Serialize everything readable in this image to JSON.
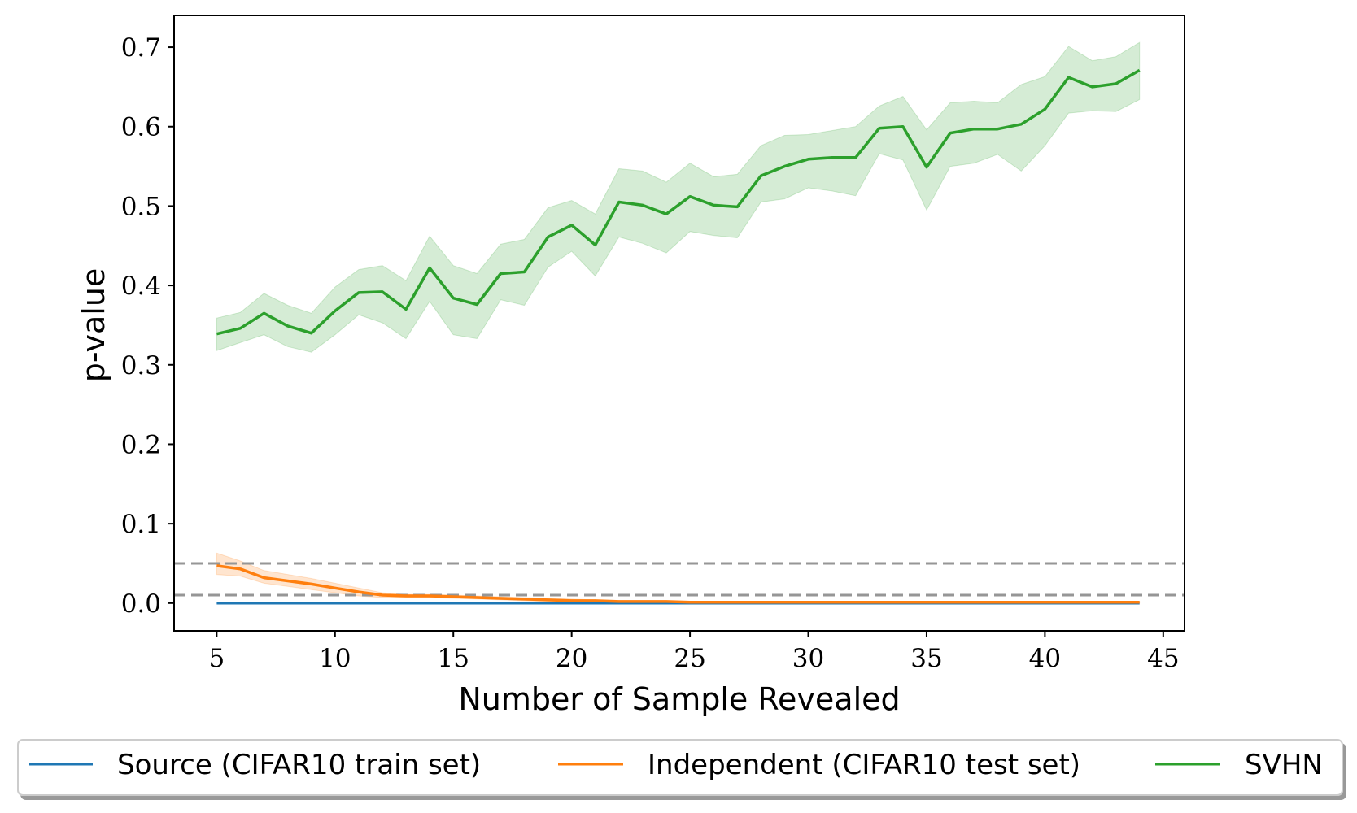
{
  "chart_data": {
    "type": "line",
    "title": "",
    "xlabel": "Number of Sample Revealed",
    "ylabel": "p-value",
    "xlim": [
      3.2,
      45.9
    ],
    "ylim": [
      -0.035,
      0.74
    ],
    "xticks": [
      5,
      10,
      15,
      20,
      25,
      30,
      35,
      40,
      45
    ],
    "xtick_labels": [
      "5",
      "10",
      "15",
      "20",
      "25",
      "30",
      "35",
      "40",
      "45"
    ],
    "yticks": [
      0.0,
      0.1,
      0.2,
      0.3,
      0.4,
      0.5,
      0.6,
      0.7
    ],
    "ytick_labels": [
      "0.0",
      "0.1",
      "0.2",
      "0.3",
      "0.4",
      "0.5",
      "0.6",
      "0.7"
    ],
    "grid": false,
    "legend_position": "bottom",
    "x": [
      5,
      6,
      7,
      8,
      9,
      10,
      11,
      12,
      13,
      14,
      15,
      16,
      17,
      18,
      19,
      20,
      21,
      22,
      23,
      24,
      25,
      26,
      27,
      28,
      29,
      30,
      31,
      32,
      33,
      34,
      35,
      36,
      37,
      38,
      39,
      40,
      41,
      42,
      43,
      44
    ],
    "reference_lines": [
      {
        "y": 0.05,
        "style": "dashed",
        "color": "#969696"
      },
      {
        "y": 0.01,
        "style": "dashed",
        "color": "#969696"
      }
    ],
    "series": [
      {
        "name": "Source (CIFAR10 train set)",
        "color": "#1f77b4",
        "values": [
          0,
          0,
          0,
          0,
          0,
          0,
          0,
          0,
          0,
          0,
          0,
          0,
          0,
          0,
          0,
          0,
          0,
          0,
          0,
          0,
          0,
          0,
          0,
          0,
          0,
          0,
          0,
          0,
          0,
          0,
          0,
          0,
          0,
          0,
          0,
          0,
          0,
          0,
          0,
          0
        ]
      },
      {
        "name": "Independent (CIFAR10 test set)",
        "color": "#ff7f0e",
        "values": [
          0.047,
          0.043,
          0.032,
          0.028,
          0.024,
          0.019,
          0.014,
          0.01,
          0.009,
          0.009,
          0.008,
          0.007,
          0.006,
          0.005,
          0.004,
          0.003,
          0.003,
          0.002,
          0.002,
          0.002,
          0.001,
          0.001,
          0.001,
          0.001,
          0.001,
          0.001,
          0.001,
          0.001,
          0.001,
          0.001,
          0.001,
          0.001,
          0.001,
          0.001,
          0.001,
          0.001,
          0.001,
          0.001,
          0.001,
          0.001
        ],
        "lower": [
          0.036,
          0.034,
          0.025,
          0.021,
          0.017,
          0.013,
          0.009,
          0.007,
          0.007,
          0.007,
          0.006,
          0.005,
          0.004,
          0.003,
          0.002,
          0.002,
          0.002,
          0.001,
          0.001,
          0.001,
          0.0,
          0.0,
          0.0,
          0.0,
          0.0,
          0.0,
          0.0,
          0.0,
          0.0,
          0.0,
          0.0,
          0.0,
          0.0,
          0.0,
          0.0,
          0.0,
          0.0,
          0.0,
          0.0,
          0.0
        ],
        "upper": [
          0.063,
          0.053,
          0.041,
          0.036,
          0.031,
          0.025,
          0.019,
          0.013,
          0.011,
          0.011,
          0.01,
          0.009,
          0.008,
          0.007,
          0.006,
          0.005,
          0.004,
          0.003,
          0.003,
          0.003,
          0.002,
          0.002,
          0.002,
          0.002,
          0.002,
          0.002,
          0.002,
          0.002,
          0.002,
          0.002,
          0.002,
          0.002,
          0.002,
          0.002,
          0.002,
          0.002,
          0.002,
          0.002,
          0.002,
          0.002
        ]
      },
      {
        "name": "SVHN",
        "color": "#2ca02c",
        "values": [
          0.339,
          0.346,
          0.365,
          0.349,
          0.34,
          0.368,
          0.391,
          0.392,
          0.37,
          0.422,
          0.384,
          0.376,
          0.415,
          0.417,
          0.461,
          0.476,
          0.451,
          0.505,
          0.501,
          0.49,
          0.512,
          0.501,
          0.499,
          0.538,
          0.55,
          0.559,
          0.561,
          0.561,
          0.598,
          0.6,
          0.549,
          0.592,
          0.597,
          0.597,
          0.603,
          0.622,
          0.662,
          0.65,
          0.654,
          0.671
        ],
        "lower": [
          0.318,
          0.328,
          0.338,
          0.323,
          0.316,
          0.338,
          0.363,
          0.353,
          0.333,
          0.38,
          0.338,
          0.333,
          0.382,
          0.375,
          0.423,
          0.443,
          0.412,
          0.461,
          0.453,
          0.441,
          0.468,
          0.463,
          0.46,
          0.505,
          0.509,
          0.523,
          0.519,
          0.513,
          0.566,
          0.558,
          0.495,
          0.55,
          0.554,
          0.565,
          0.544,
          0.576,
          0.617,
          0.62,
          0.619,
          0.634
        ],
        "upper": [
          0.359,
          0.366,
          0.39,
          0.375,
          0.365,
          0.398,
          0.42,
          0.425,
          0.406,
          0.462,
          0.425,
          0.415,
          0.452,
          0.458,
          0.498,
          0.507,
          0.49,
          0.547,
          0.544,
          0.53,
          0.554,
          0.537,
          0.54,
          0.576,
          0.589,
          0.59,
          0.595,
          0.6,
          0.626,
          0.638,
          0.596,
          0.63,
          0.632,
          0.63,
          0.653,
          0.663,
          0.701,
          0.683,
          0.688,
          0.706
        ]
      }
    ]
  }
}
